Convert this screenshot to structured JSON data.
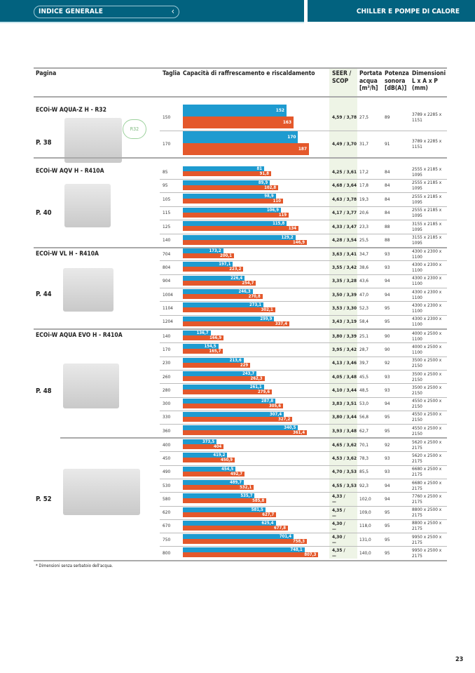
{
  "header": {
    "nav_label": "INDICE GENERALE",
    "section_title": "CHILLER E POMPE DI CALORE"
  },
  "table": {
    "columns": [
      "Pagina",
      "Taglia",
      "Capacità di raffrescamento e riscaldamento",
      "SEER / SCOP",
      "Portata acqua (m³/h)",
      "Potenza sonora (dB(A))",
      "Dimensioni L x A x P (mm)"
    ],
    "col_lines": {
      "seer": [
        "SEER /",
        "SCOP"
      ],
      "portata": [
        "Portata",
        "acqua",
        "[m³/h]"
      ],
      "potenza": [
        "Potenza",
        "sonora",
        "[dB(A)]"
      ],
      "dim": [
        "Dimensioni",
        "L x A x P",
        "(mm)"
      ]
    },
    "colors": {
      "cooling": "#1e9bd0",
      "heating": "#e4582b"
    },
    "sections": [
      {
        "model": "ECOi-W AQUA-Z H - R32",
        "page": "P. 38",
        "badge": "R32",
        "rows": [
          {
            "size": "150",
            "cool": "152",
            "heat": "163",
            "seer": "4,59 / 3,78",
            "flow": "27,5",
            "sound": "89",
            "dim": [
              "3789 x 2285 x",
              "1151"
            ]
          },
          {
            "size": "170",
            "cool": "170",
            "heat": "187",
            "seer": "4,49 / 3,70",
            "flow": "31,7",
            "sound": "91",
            "dim": [
              "3789 x 2285 x",
              "1151"
            ]
          }
        ]
      },
      {
        "model": "ECOi-W AQV H - R410A",
        "page": "P. 40",
        "rows": [
          {
            "size": "85",
            "cool": "81",
            "heat": "91,8",
            "seer": "4,25 / 3,61",
            "flow": "17,2",
            "sound": "84",
            "dim": [
              "2555 x 2185 x",
              "1095"
            ]
          },
          {
            "size": "95",
            "cool": "89,9",
            "heat": "102,8",
            "seer": "4,68 / 3,64",
            "flow": "17,8",
            "sound": "84",
            "dim": [
              "2555 x 2185 x",
              "1095"
            ]
          },
          {
            "size": "105",
            "cool": "98,9",
            "heat": "110",
            "seer": "4,63 / 3,78",
            "flow": "19,3",
            "sound": "84",
            "dim": [
              "2555 x 2185 x",
              "1095"
            ]
          },
          {
            "size": "115",
            "cool": "106,9",
            "heat": "119",
            "seer": "4,17 / 3,77",
            "flow": "20,6",
            "sound": "84",
            "dim": [
              "2555 x 2185 x",
              "1095"
            ]
          },
          {
            "size": "125",
            "cool": "115,8",
            "heat": "134",
            "seer": "4,33 / 3,47",
            "flow": "23,3",
            "sound": "88",
            "dim": [
              "3155 x 2185 x",
              "1095"
            ]
          },
          {
            "size": "140",
            "cool": "129,2",
            "heat": "146,9",
            "seer": "4,28 / 3,54",
            "flow": "25,5",
            "sound": "88",
            "dim": [
              "3155 x 2185 x",
              "1095"
            ]
          }
        ]
      },
      {
        "model": "ECOi-W VL H - R410A",
        "page": "P. 44",
        "rows": [
          {
            "size": "704",
            "cool": "173,2",
            "heat": "200,1",
            "seer": "3,63 / 3,41",
            "flow": "34,7",
            "sound": "93",
            "dim": [
              "4300 x 2300 x",
              "1100"
            ]
          },
          {
            "size": "804",
            "cool": "197,1",
            "heat": "223,2",
            "seer": "3,55 / 3,42",
            "flow": "38,6",
            "sound": "93",
            "dim": [
              "4300 x 2300 x",
              "1100"
            ]
          },
          {
            "size": "904",
            "cool": "226,4",
            "heat": "254,7",
            "seer": "3,35 / 3,28",
            "flow": "43,6",
            "sound": "94",
            "dim": [
              "4300 x 2300 x",
              "1100"
            ]
          },
          {
            "size": "1004",
            "cool": "246,3",
            "heat": "270,8",
            "seer": "3,50 / 3,39",
            "flow": "47,0",
            "sound": "94",
            "dim": [
              "4300 x 2300 x",
              "1100"
            ]
          },
          {
            "size": "1104",
            "cool": "273,1",
            "heat": "302,1",
            "seer": "3,53 / 3,30",
            "flow": "52,3",
            "sound": "95",
            "dim": [
              "4300 x 2300 x",
              "1100"
            ]
          },
          {
            "size": "1204",
            "cool": "299,9",
            "heat": "337,4",
            "seer": "3,43 / 3,19",
            "flow": "58,4",
            "sound": "95",
            "dim": [
              "4300 x 2300 x",
              "1100"
            ]
          }
        ]
      },
      {
        "model": "ECOi-W AQUA EVO H - R410A",
        "page": "P. 48",
        "rows": [
          {
            "size": "140",
            "cool": "136,7",
            "heat": "166,9",
            "seer": "3,80 / 3,39",
            "flow": "25,1",
            "sound": "90",
            "dim": [
              "4000 x 2500 x",
              "1100"
            ]
          },
          {
            "size": "170",
            "cool": "154,5",
            "heat": "165,7",
            "seer": "3,95 / 3,42",
            "flow": "28,7",
            "sound": "90",
            "dim": [
              "4000 x 2500 x",
              "1100"
            ]
          },
          {
            "size": "230",
            "cool": "213,6",
            "heat": "229",
            "seer": "4,13 / 3,46",
            "flow": "39,7",
            "sound": "92",
            "dim": [
              "3500 x 2500 x",
              "2150"
            ]
          },
          {
            "size": "260",
            "cool": "243,7",
            "heat": "262,3",
            "seer": "4,05 / 3,48",
            "flow": "45,5",
            "sound": "93",
            "dim": [
              "3500 x 2500 x",
              "2150"
            ]
          },
          {
            "size": "280",
            "cool": "261,1",
            "heat": "279,6",
            "seer": "4,10 / 3,44",
            "flow": "48,5",
            "sound": "93",
            "dim": [
              "3500 x 2500 x",
              "2150"
            ]
          },
          {
            "size": "300",
            "cool": "287,8",
            "heat": "305,6",
            "seer": "3,83 / 3,51",
            "flow": "53,0",
            "sound": "94",
            "dim": [
              "4550 x 2500 x",
              "2150"
            ]
          },
          {
            "size": "330",
            "cool": "307,4",
            "heat": "327,2",
            "seer": "3,80 / 3,44",
            "flow": "56,8",
            "sound": "95",
            "dim": [
              "4550 x 2500 x",
              "2150"
            ]
          },
          {
            "size": "360",
            "cool": "340,5",
            "heat": "361,4",
            "seer": "3,93 / 3,48",
            "flow": "62,7",
            "sound": "95",
            "dim": [
              "4550 x 2500 x",
              "2150"
            ]
          }
        ]
      },
      {
        "model": "",
        "page": "P. 52",
        "rows": [
          {
            "size": "400",
            "cool": "373,5",
            "heat": "404",
            "seer": "4,65 / 3,62",
            "flow": "70,1",
            "sound": "92",
            "dim": [
              "5620 x 2500 x",
              "2175"
            ]
          },
          {
            "size": "450",
            "cool": "419,2",
            "heat": "450,9",
            "seer": "4,53 / 3,62",
            "flow": "78,3",
            "sound": "93",
            "dim": [
              "5620 x 2500 x",
              "2175"
            ]
          },
          {
            "size": "490",
            "cool": "454,5",
            "heat": "492,7",
            "seer": "4,70 / 3,53",
            "flow": "85,5",
            "sound": "93",
            "dim": [
              "6680 x 2500 x",
              "2175"
            ]
          },
          {
            "size": "530",
            "cool": "489,7",
            "heat": "532,1",
            "seer": "4,55 / 3,53",
            "flow": "92,3",
            "sound": "94",
            "dim": [
              "6680 x 2500 x",
              "2175"
            ]
          },
          {
            "size": "580",
            "cool": "535,7",
            "heat": "585,8",
            "seer": "4,33 / —",
            "flow": "102,0",
            "sound": "94",
            "dim": [
              "7760 x 2500 x",
              "2175"
            ]
          },
          {
            "size": "620",
            "cool": "581,5",
            "heat": "627,7",
            "seer": "4,35 / —",
            "flow": "109,0",
            "sound": "95",
            "dim": [
              "8800 x 2500 x",
              "2175"
            ]
          },
          {
            "size": "670",
            "cool": "625,4",
            "heat": "677,8",
            "seer": "4,30 / —",
            "flow": "118,0",
            "sound": "95",
            "dim": [
              "8800 x 2500 x",
              "2175"
            ]
          },
          {
            "size": "750",
            "cool": "701,4",
            "heat": "758,3",
            "seer": "4,30 / —",
            "flow": "131,0",
            "sound": "95",
            "dim": [
              "9950 x 2500 x",
              "2175"
            ]
          },
          {
            "size": "800",
            "cool": "748,1",
            "heat": "807,3",
            "seer": "4,35 / —",
            "flow": "140,0",
            "sound": "95",
            "dim": [
              "9950 x 2500 x",
              "2175"
            ]
          }
        ]
      }
    ]
  },
  "footnote": "* Dimensioni senza serbatoio dell'acqua.",
  "page_number": "23"
}
